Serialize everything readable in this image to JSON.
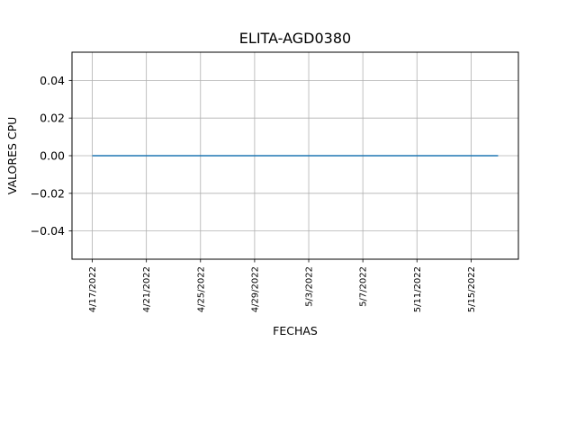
{
  "chart_data": {
    "type": "line",
    "title": "ELITA-AGD0380",
    "xlabel": "FECHAS",
    "ylabel": "VALORES CPU",
    "x_tick_labels": [
      "4/17/2022",
      "4/21/2022",
      "4/25/2022",
      "4/29/2022",
      "5/3/2022",
      "5/7/2022",
      "5/11/2022",
      "5/15/2022"
    ],
    "y_tick_labels": [
      "−0.04",
      "−0.02",
      "0.00",
      "0.02",
      "0.04"
    ],
    "y_ticks": [
      -0.04,
      -0.02,
      0.0,
      0.02,
      0.04
    ],
    "ylim": [
      -0.055,
      0.055
    ],
    "xlim": [
      "2022-04-15T12:00",
      "2022-05-18T12:00"
    ],
    "grid": true,
    "series": [
      {
        "color": "#1f77b4",
        "x": [
          "2022-04-17",
          "2022-05-17"
        ],
        "y": [
          0,
          0
        ]
      }
    ]
  }
}
